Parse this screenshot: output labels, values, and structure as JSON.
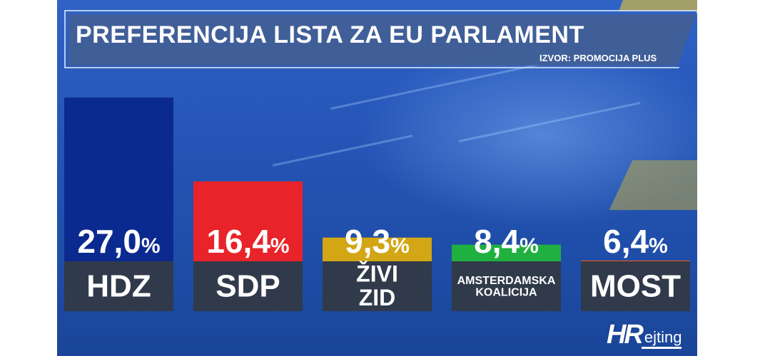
{
  "chart_data": {
    "type": "bar",
    "title": "PREFERENCIJA LISTA ZA EU PARLAMENT",
    "source": "IZVOR: PROMOCIJA PLUS",
    "unit": "%",
    "ylim": [
      0,
      27
    ],
    "categories": [
      {
        "lines": [
          "HDZ"
        ],
        "size": "large"
      },
      {
        "lines": [
          "SDP"
        ],
        "size": "large"
      },
      {
        "lines": [
          "ŽIVI",
          "ZID"
        ],
        "size": "medium"
      },
      {
        "lines": [
          "AMSTERDAMSKA",
          "KOALICIJA"
        ],
        "size": "small"
      },
      {
        "lines": [
          "MOST"
        ],
        "size": "large"
      }
    ],
    "values": [
      27.0,
      16.4,
      9.3,
      8.4,
      6.4
    ],
    "value_labels": [
      "27,0",
      "16,4",
      "9,3",
      "8,4",
      "6,4"
    ],
    "colors": [
      "#0b2a8f",
      "#e8232a",
      "#d2a615",
      "#1fb040",
      "#ef5a23"
    ],
    "grid": false,
    "legend": "none"
  },
  "logo": {
    "hr": "HR",
    "rest": "ejting"
  }
}
